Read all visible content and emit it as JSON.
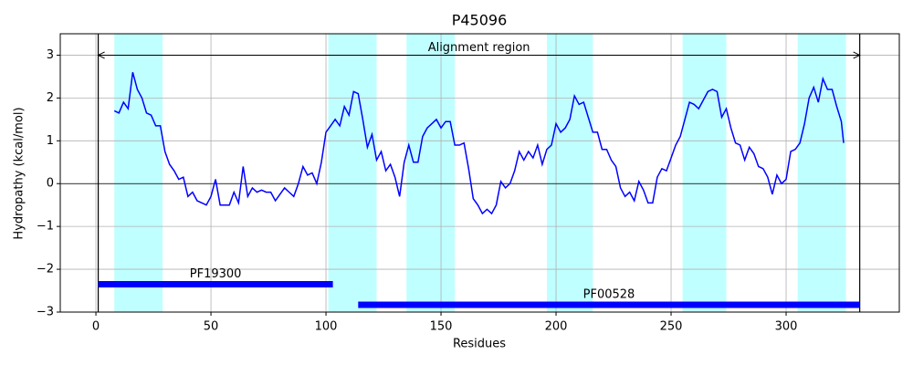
{
  "chart_data": {
    "type": "line",
    "title": "P45096",
    "x_label": "Residues",
    "y_label": "Hydropathy (kcal/mol)",
    "xlim": [
      -15.5,
      349.2
    ],
    "ylim": [
      -3,
      3.5
    ],
    "xticks": [
      0,
      50,
      100,
      150,
      200,
      250,
      300
    ],
    "yticks": [
      {
        "value": -3,
        "label": "−3"
      },
      {
        "value": -2,
        "label": "−2"
      },
      {
        "value": -1,
        "label": "−1"
      },
      0,
      1,
      2,
      3
    ],
    "grid": true,
    "series": [
      {
        "color": "#0000ff",
        "x": [
          8,
          10,
          12,
          14,
          16,
          18,
          20,
          22,
          24,
          26,
          28,
          30,
          32,
          34,
          36,
          38,
          40,
          42,
          44,
          46,
          48,
          50,
          52,
          54,
          56,
          58,
          60,
          62,
          64,
          66,
          68,
          70,
          72,
          74,
          76,
          78,
          80,
          82,
          84,
          86,
          88,
          90,
          92,
          94,
          96,
          98,
          100,
          102,
          104,
          106,
          108,
          110,
          112,
          114,
          116,
          118,
          120,
          122,
          124,
          126,
          128,
          130,
          132,
          134,
          136,
          138,
          140,
          142,
          144,
          146,
          148,
          150,
          152,
          154,
          156,
          158,
          160,
          162,
          164,
          166,
          168,
          170,
          172,
          174,
          176,
          178,
          180,
          182,
          184,
          186,
          188,
          190,
          192,
          194,
          196,
          198,
          200,
          202,
          204,
          206,
          208,
          210,
          212,
          214,
          216,
          218,
          220,
          222,
          224,
          226,
          228,
          230,
          232,
          234,
          236,
          238,
          240,
          242,
          244,
          246,
          248,
          250,
          252,
          254,
          256,
          258,
          260,
          262,
          264,
          266,
          268,
          270,
          272,
          274,
          276,
          278,
          280,
          282,
          284,
          286,
          288,
          290,
          292,
          294,
          296,
          298,
          300,
          302,
          304,
          306,
          308,
          310,
          312,
          314,
          316,
          318,
          320,
          322,
          324,
          325
        ],
        "values": [
          1.7,
          1.65,
          1.9,
          1.75,
          2.6,
          2.2,
          2.0,
          1.65,
          1.6,
          1.35,
          1.35,
          0.75,
          0.45,
          0.3,
          0.1,
          0.15,
          -0.3,
          -0.2,
          -0.4,
          -0.45,
          -0.5,
          -0.3,
          0.1,
          -0.5,
          -0.5,
          -0.5,
          -0.2,
          -0.45,
          0.4,
          -0.3,
          -0.1,
          -0.2,
          -0.15,
          -0.2,
          -0.2,
          -0.4,
          -0.25,
          -0.1,
          -0.2,
          -0.3,
          0.0,
          0.4,
          0.2,
          0.25,
          0.0,
          0.5,
          1.2,
          1.35,
          1.5,
          1.35,
          1.8,
          1.6,
          2.15,
          2.1,
          1.5,
          0.85,
          1.15,
          0.55,
          0.75,
          0.3,
          0.45,
          0.15,
          -0.3,
          0.5,
          0.9,
          0.5,
          0.5,
          1.1,
          1.3,
          1.4,
          1.5,
          1.3,
          1.45,
          1.45,
          0.9,
          0.9,
          0.95,
          0.35,
          -0.35,
          -0.5,
          -0.7,
          -0.6,
          -0.7,
          -0.5,
          0.05,
          -0.1,
          0.0,
          0.3,
          0.75,
          0.55,
          0.75,
          0.6,
          0.9,
          0.45,
          0.8,
          0.9,
          1.4,
          1.2,
          1.3,
          1.5,
          2.05,
          1.85,
          1.9,
          1.55,
          1.2,
          1.2,
          0.8,
          0.8,
          0.55,
          0.4,
          -0.1,
          -0.3,
          -0.2,
          -0.4,
          0.05,
          -0.15,
          -0.45,
          -0.45,
          0.15,
          0.35,
          0.3,
          0.6,
          0.9,
          1.1,
          1.5,
          1.9,
          1.85,
          1.75,
          1.95,
          2.15,
          2.2,
          2.15,
          1.55,
          1.75,
          1.3,
          0.95,
          0.9,
          0.55,
          0.85,
          0.7,
          0.4,
          0.35,
          0.15,
          -0.25,
          0.2,
          0.0,
          0.1,
          0.75,
          0.8,
          0.95,
          1.4,
          2.0,
          2.25,
          1.9,
          2.45,
          2.2,
          2.2,
          1.8,
          1.45,
          0.95
        ]
      }
    ],
    "bands": {
      "color": "#c0ffff",
      "ranges": [
        [
          8,
          29
        ],
        [
          101,
          122
        ],
        [
          135,
          156
        ],
        [
          196,
          216
        ],
        [
          255,
          274
        ],
        [
          305,
          326
        ]
      ]
    },
    "vlines": [
      1,
      332
    ],
    "hline": 0,
    "annotation": {
      "text": "Alignment region",
      "start": 1,
      "end": 332,
      "y": 3
    },
    "domains": {
      "color": "#0000ff",
      "items": [
        {
          "name": "PF19300",
          "start": 1,
          "end": 103,
          "y": -2.35
        },
        {
          "name": "PF00528",
          "start": 114,
          "end": 332,
          "y": -2.83
        }
      ]
    }
  }
}
